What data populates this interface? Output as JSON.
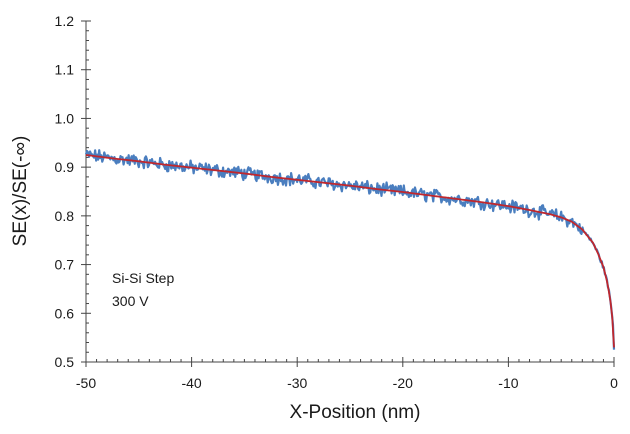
{
  "chart_data": {
    "type": "line",
    "xlabel": "X-Position (nm)",
    "ylabel": "SE(x)/SE(-∞)",
    "xlim": [
      -50,
      0
    ],
    "ylim": [
      0.5,
      1.2
    ],
    "x_ticks": [
      -50,
      -40,
      -30,
      -20,
      -10,
      0
    ],
    "x_tick_labels": [
      "-50",
      "-40",
      "-30",
      "-20",
      "-10",
      "0"
    ],
    "y_ticks": [
      0.5,
      0.6,
      0.7,
      0.8,
      0.9,
      1.0,
      1.1,
      1.2
    ],
    "y_tick_labels": [
      "0.5",
      "0.6",
      "0.7",
      "0.8",
      "0.9",
      "1.0",
      "1.1",
      "1.2"
    ],
    "grid": false,
    "annotations": [
      "Si-Si Step",
      "300 V"
    ],
    "series": [
      {
        "color": "#4a7ebf",
        "style": "noisy",
        "x": [
          -50,
          -47.5,
          -45,
          -42.5,
          -40,
          -37.5,
          -35,
          -32.5,
          -30,
          -27.5,
          -25,
          -22.5,
          -20,
          -17.5,
          -15,
          -12.5,
          -10,
          -8,
          -6,
          -5,
          -4,
          -3,
          -2,
          -1.5,
          -1,
          -0.6,
          -0.3,
          -0.1,
          0
        ],
        "y": [
          0.925,
          0.918,
          0.912,
          0.905,
          0.899,
          0.893,
          0.887,
          0.88,
          0.874,
          0.868,
          0.862,
          0.855,
          0.849,
          0.842,
          0.835,
          0.828,
          0.82,
          0.812,
          0.803,
          0.797,
          0.788,
          0.772,
          0.745,
          0.722,
          0.695,
          0.66,
          0.62,
          0.578,
          0.53
        ]
      },
      {
        "color": "#c0272d",
        "style": "smooth",
        "x": [
          -50,
          -47.5,
          -45,
          -42.5,
          -40,
          -37.5,
          -35,
          -32.5,
          -30,
          -27.5,
          -25,
          -22.5,
          -20,
          -17.5,
          -15,
          -12.5,
          -10,
          -8,
          -6,
          -5,
          -4,
          -3,
          -2,
          -1.5,
          -1,
          -0.6,
          -0.3,
          -0.1,
          0
        ],
        "y": [
          0.925,
          0.918,
          0.912,
          0.905,
          0.899,
          0.893,
          0.887,
          0.88,
          0.874,
          0.868,
          0.862,
          0.855,
          0.849,
          0.842,
          0.835,
          0.828,
          0.82,
          0.812,
          0.803,
          0.797,
          0.788,
          0.772,
          0.745,
          0.722,
          0.695,
          0.66,
          0.62,
          0.578,
          0.53
        ]
      }
    ]
  }
}
